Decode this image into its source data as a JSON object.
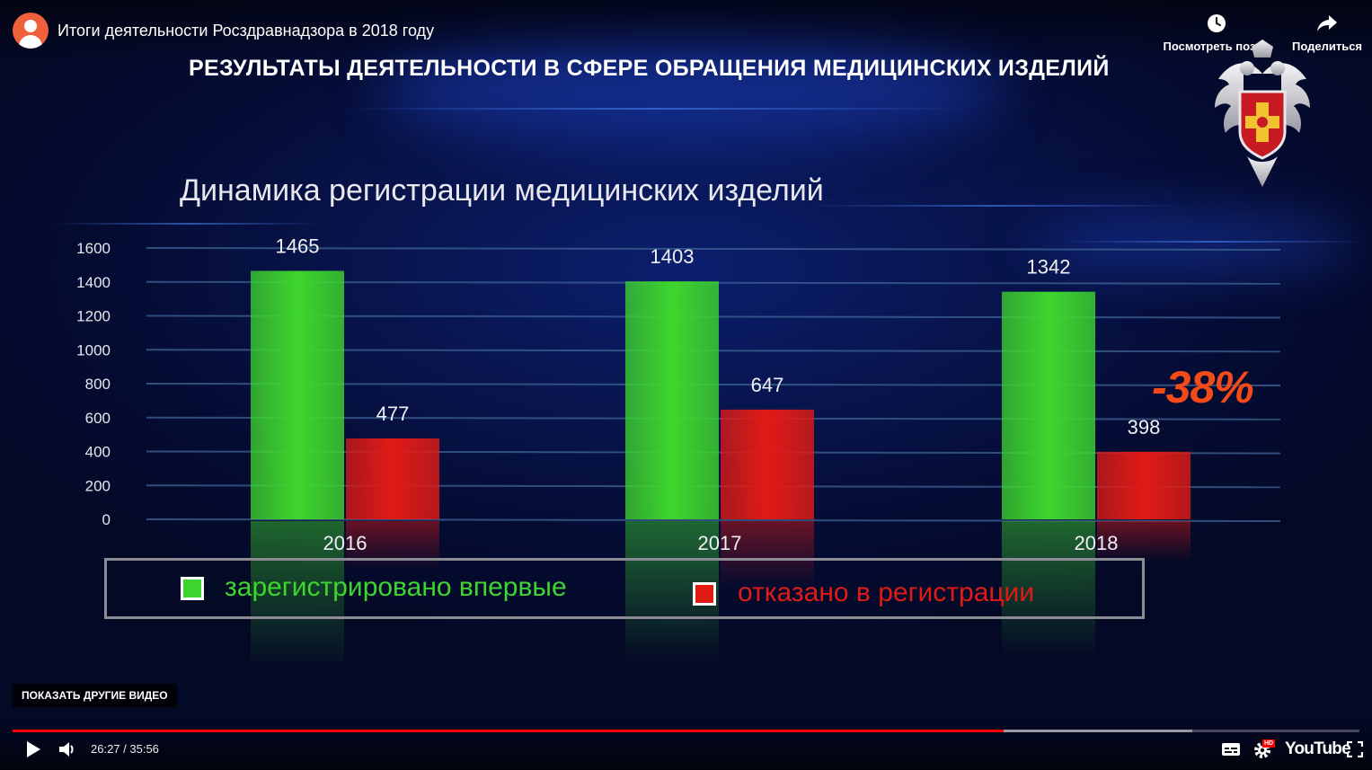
{
  "player": {
    "video_title": "Итоги деятельности Росздравнадзора в 2018 году",
    "watch_later_label": "Посмотреть позже",
    "share_label": "Поделиться",
    "more_videos_label": "ПОКАЗАТЬ ДРУГИЕ ВИДЕО",
    "time_display": "26:27 / 35:56",
    "progress_fraction": 0.736,
    "buffered_fraction": 0.876,
    "logo_text": "YouTube",
    "hd_badge": "HD",
    "colors": {
      "progress": "#ff0000",
      "avatar": "#f0603a"
    }
  },
  "slide": {
    "heading": "РЕЗУЛЬТАТЫ ДЕЯТЕЛЬНОСТИ В СФЕРЕ ОБРАЩЕНИЯ МЕДИЦИНСКИХ ИЗДЕЛИЙ",
    "callout": "-38%"
  },
  "chart_data": {
    "type": "bar",
    "title": "Динамика регистрации медицинских изделий",
    "categories": [
      "2016",
      "2017",
      "2018"
    ],
    "series": [
      {
        "name": "зарегистрировано впервые",
        "values": [
          1465,
          1403,
          1342
        ],
        "color": "#3ed62e"
      },
      {
        "name": "отказано в регистрации",
        "values": [
          477,
          647,
          398
        ],
        "color": "#e01b16"
      }
    ],
    "ylim": [
      0,
      1600
    ],
    "yticks": [
      0,
      200,
      400,
      600,
      800,
      1000,
      1200,
      1400,
      1600
    ],
    "grid": true,
    "legend_position": "bottom"
  }
}
